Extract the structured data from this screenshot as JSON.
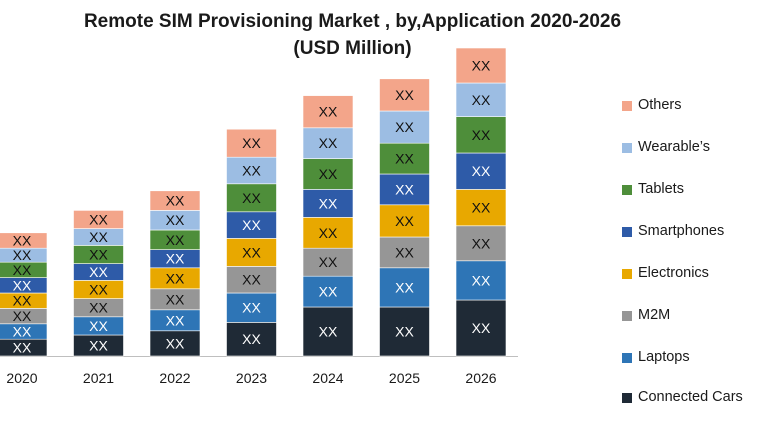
{
  "chart_data": {
    "type": "bar",
    "stacked": true,
    "title_lines": [
      "Remote SIM Provisioning Market , by,Application 2020-2026",
      "(USD Million)"
    ],
    "categories": [
      "2020",
      "2021",
      "2022",
      "2023",
      "2024",
      "2025",
      "2026"
    ],
    "series": [
      {
        "name": "Connected Cars",
        "color": "#1f2a36",
        "values": [
          12,
          15,
          18,
          24,
          35,
          35,
          40
        ],
        "labels": [
          "XX",
          "XX",
          "XX",
          "XX",
          "XX",
          "XX",
          "XX"
        ]
      },
      {
        "name": "Laptops",
        "color": "#2e75b6",
        "values": [
          11,
          13,
          15,
          21,
          22,
          28,
          28
        ],
        "labels": [
          "XX",
          "XX",
          "XX",
          "XX",
          "XX",
          "XX",
          "XX"
        ]
      },
      {
        "name": "M2M",
        "color": "#969696",
        "values": [
          11,
          13,
          15,
          19,
          20,
          22,
          25
        ],
        "labels": [
          "XX",
          "XX",
          "XX",
          "XX",
          "XX",
          "XX",
          "XX"
        ]
      },
      {
        "name": "Electronics",
        "color": "#e8a800",
        "values": [
          11,
          13,
          15,
          20,
          22,
          23,
          26
        ],
        "labels": [
          "XX",
          "XX",
          "XX",
          "XX",
          "XX",
          "XX",
          "XX"
        ]
      },
      {
        "name": "Smartphones",
        "color": "#2e5ba8",
        "values": [
          11,
          12,
          13,
          19,
          20,
          22,
          26
        ],
        "labels": [
          "XX",
          "XX",
          "XX",
          "XX",
          "XX",
          "XX",
          "XX"
        ]
      },
      {
        "name": "Tablets",
        "color": "#4e8e3a",
        "values": [
          11,
          13,
          14,
          20,
          22,
          22,
          26
        ],
        "labels": [
          "XX",
          "XX",
          "XX",
          "XX",
          "XX",
          "XX",
          "XX"
        ]
      },
      {
        "name": "Wearable’s",
        "color": "#9cbde3",
        "values": [
          10,
          12,
          14,
          19,
          22,
          23,
          24
        ],
        "labels": [
          "XX",
          "XX",
          "XX",
          "XX",
          "XX",
          "XX",
          "XX"
        ]
      },
      {
        "name": "Others",
        "color": "#f3a58a",
        "values": [
          11,
          13,
          14,
          20,
          23,
          23,
          25
        ],
        "labels": [
          "XX",
          "XX",
          "XX",
          "XX",
          "XX",
          "XX",
          "XX"
        ]
      }
    ],
    "legend_order": [
      "Others",
      "Wearable’s",
      "Tablets",
      "Smartphones",
      "Electronics",
      "M2M",
      "Laptops",
      "Connected Cars"
    ],
    "ylim": [
      0,
      240
    ],
    "xlabel": "",
    "ylabel": "",
    "grid": false,
    "legend_position": "right"
  }
}
